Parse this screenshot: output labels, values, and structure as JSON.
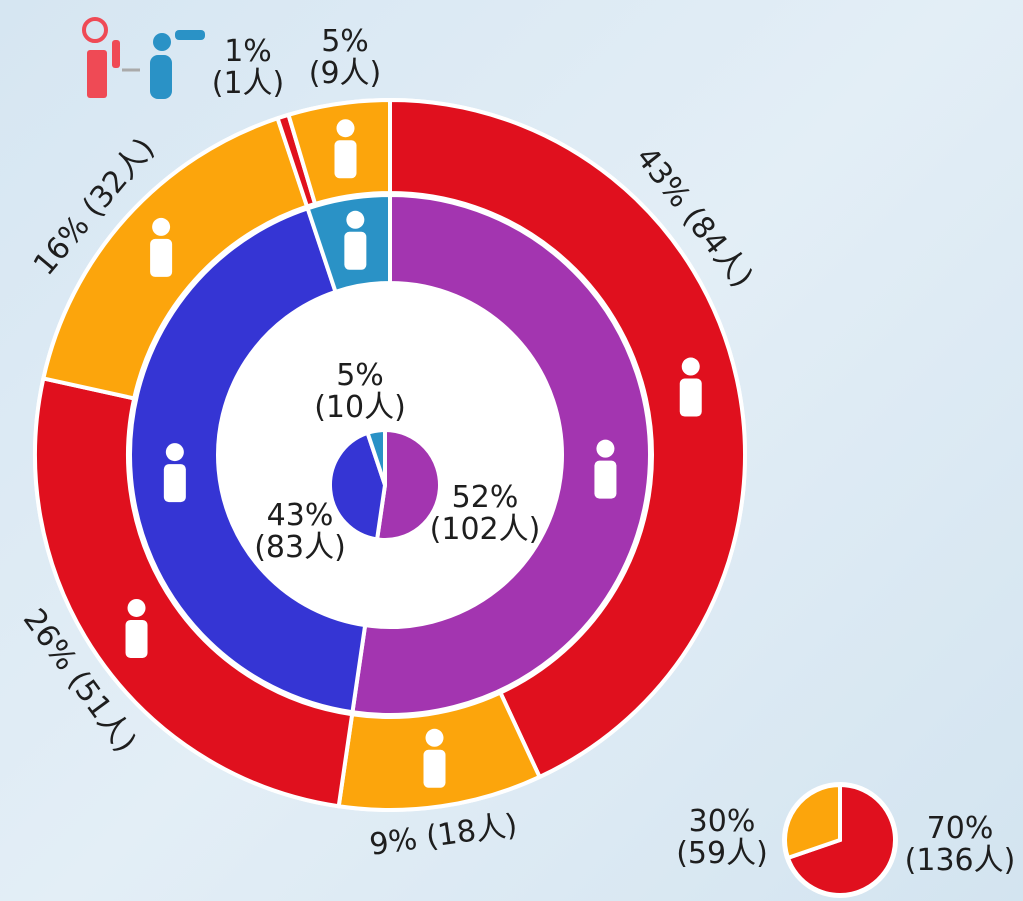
{
  "chart_data": {
    "type": "donut",
    "outer": {
      "values": [
        84,
        18,
        51,
        32,
        1,
        9
      ],
      "value_labels": [
        "43% (84人)",
        "9% (18人)",
        "26% (51人)",
        "16% (32人)",
        "1% (1人)",
        "5% (9人)"
      ],
      "colors": [
        "#e0101e",
        "#fca50c",
        "#e0101e",
        "#fca50c",
        "#e0101e",
        "#fca50c"
      ]
    },
    "inner": {
      "values": [
        102,
        83,
        10
      ],
      "value_labels": [
        "52% (102人)",
        "43% (83人)",
        "5% (10人)"
      ],
      "colors": [
        "#a335b0",
        "#3535d4",
        "#2a92c6"
      ]
    },
    "summary": {
      "values": [
        136,
        59
      ],
      "value_labels": [
        "70% (136人)",
        "30% (59人)"
      ],
      "colors": [
        "#e0101e",
        "#fca50c"
      ]
    }
  }
}
